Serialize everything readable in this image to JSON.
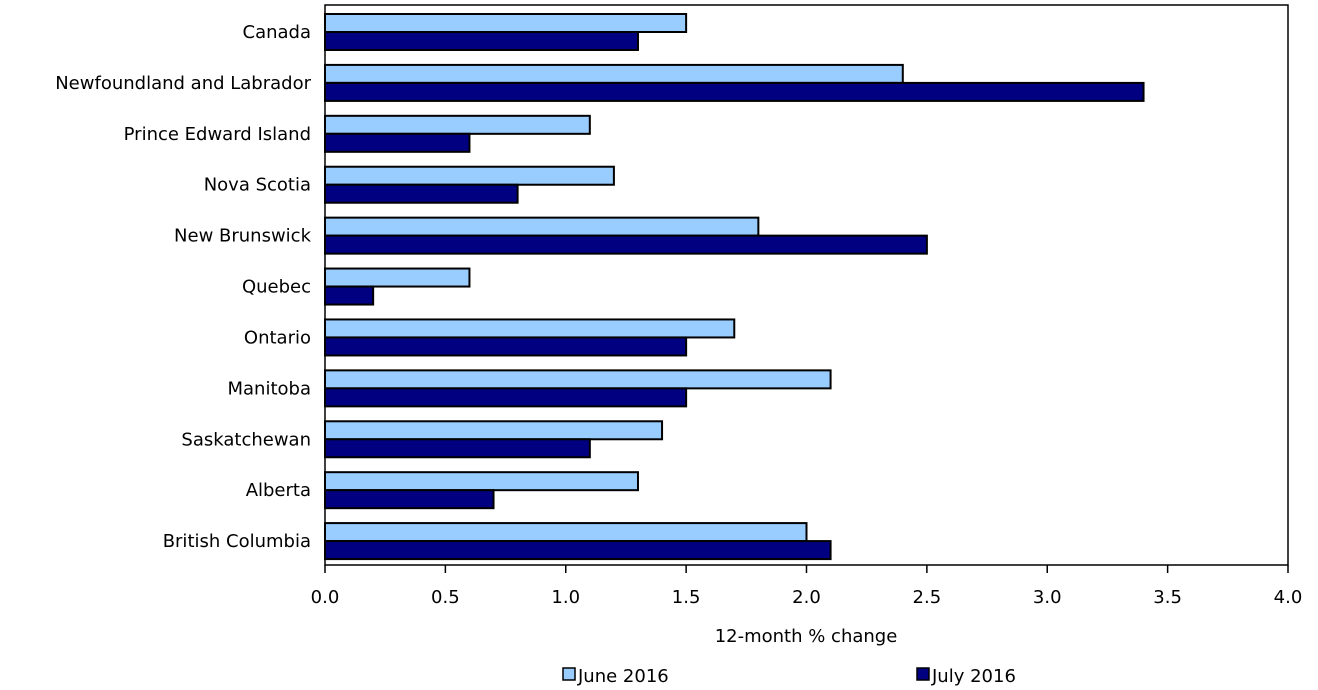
{
  "chart_data": {
    "type": "bar",
    "orientation": "horizontal",
    "categories": [
      "Canada",
      "Newfoundland and Labrador",
      "Prince Edward Island",
      "Nova Scotia",
      "New Brunswick",
      "Quebec",
      "Ontario",
      "Manitoba",
      "Saskatchewan",
      "Alberta",
      "British Columbia"
    ],
    "series": [
      {
        "name": "June 2016",
        "color": "#99CCFF",
        "values": [
          1.5,
          2.4,
          1.1,
          1.2,
          1.8,
          0.6,
          1.7,
          2.1,
          1.4,
          1.3,
          2.0
        ]
      },
      {
        "name": "July 2016",
        "color": "#000080",
        "values": [
          1.3,
          3.4,
          0.6,
          0.8,
          2.5,
          0.2,
          1.5,
          1.5,
          1.1,
          0.7,
          2.1
        ]
      }
    ],
    "title": "",
    "xlabel": "12-month % change",
    "ylabel": "",
    "xlim": [
      0,
      4.0
    ],
    "xticks": [
      "0.0",
      "0.5",
      "1.0",
      "1.5",
      "2.0",
      "2.5",
      "3.0",
      "3.5",
      "4.0"
    ],
    "grid": false,
    "legend_position": "bottom"
  }
}
